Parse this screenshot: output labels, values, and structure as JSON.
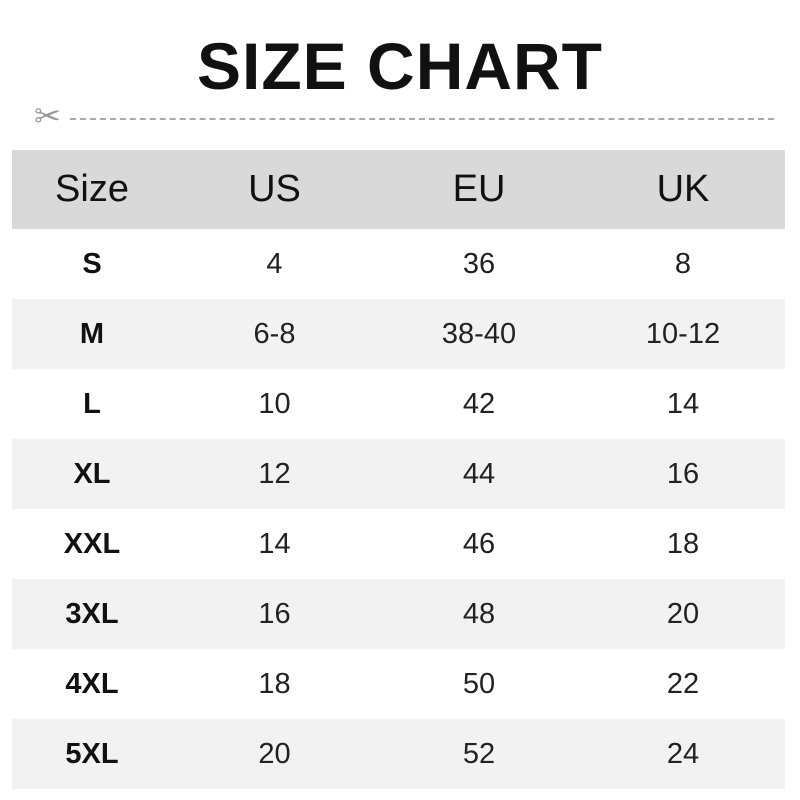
{
  "title": "SIZE CHART",
  "icons": {
    "cut_line": "scissors-icon"
  },
  "headers": [
    "Size",
    "US",
    "EU",
    "UK"
  ],
  "rows": [
    [
      "S",
      "4",
      "36",
      "8"
    ],
    [
      "M",
      "6-8",
      "38-40",
      "10-12"
    ],
    [
      "L",
      "10",
      "42",
      "14"
    ],
    [
      "XL",
      "12",
      "44",
      "16"
    ],
    [
      "XXL",
      "14",
      "46",
      "18"
    ],
    [
      "3XL",
      "16",
      "48",
      "20"
    ],
    [
      "4XL",
      "18",
      "50",
      "22"
    ],
    [
      "5XL",
      "20",
      "52",
      "24"
    ]
  ]
}
